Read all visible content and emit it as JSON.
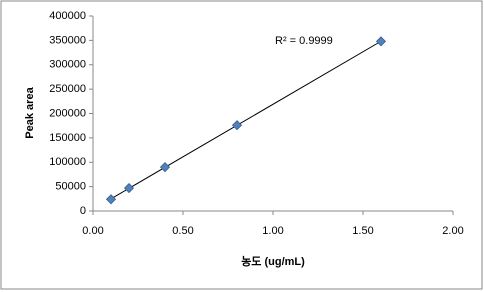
{
  "chart_data": {
    "type": "scatter",
    "x_label": "농도 (ug/mL)",
    "y_label": "Peak area",
    "annotation": "R² = 0.9999",
    "x": [
      0.1,
      0.2,
      0.4,
      0.8,
      1.6
    ],
    "values": [
      24000,
      47000,
      90000,
      176000,
      348000
    ],
    "color": "#4f81bd",
    "trendline": true,
    "xlim": [
      0,
      2
    ],
    "xticks": [
      {
        "value": 0,
        "label": "0.00"
      },
      {
        "value": 0.5,
        "label": "0.50"
      },
      {
        "value": 1,
        "label": "1.00"
      },
      {
        "value": 1.5,
        "label": "1.50"
      },
      {
        "value": 2,
        "label": "2.00"
      }
    ],
    "ylim": [
      0,
      400000
    ],
    "yticks": [
      0,
      50000,
      100000,
      150000,
      200000,
      250000,
      300000,
      350000,
      400000
    ]
  }
}
